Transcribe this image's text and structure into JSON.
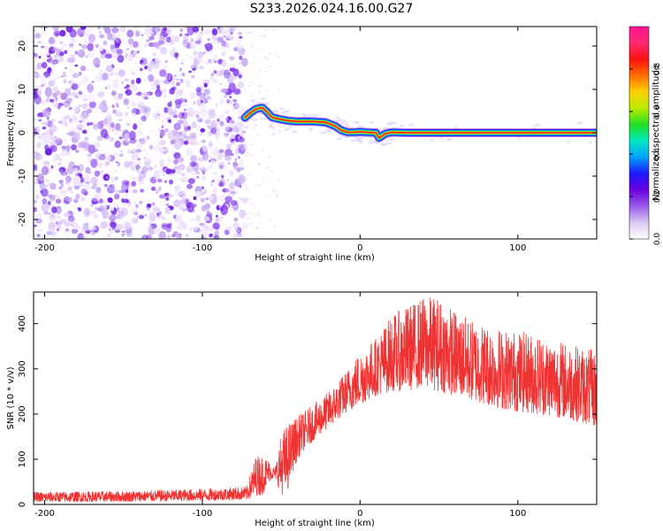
{
  "title": "S233.2026.024.16.00.G27",
  "chart_data": [
    {
      "type": "heatmap",
      "xlabel": "Height of straight line (km)",
      "ylabel": "Frequency (Hz)",
      "xlim": [
        -207,
        150
      ],
      "ylim": [
        -24.5,
        24.5
      ],
      "xticks": [
        -200,
        -100,
        0,
        100
      ],
      "yticks": [
        -20,
        -10,
        0,
        10,
        20
      ],
      "grid": false,
      "noise_region_x": [
        -207,
        -73
      ],
      "ridge": {
        "x": [
          -73,
          -70,
          -66,
          -62,
          -59,
          -56,
          -52,
          -46,
          -40,
          -30,
          -22,
          -16,
          -12,
          -8,
          -4,
          0,
          4,
          10,
          12,
          16,
          20,
          30,
          60,
          100,
          150
        ],
        "freq": [
          3.5,
          4.5,
          5.5,
          5.8,
          4.8,
          3.6,
          3.2,
          2.8,
          2.6,
          2.6,
          2.4,
          1.6,
          0.6,
          0.1,
          0.1,
          0.2,
          0.1,
          0.0,
          -1.2,
          -0.2,
          0.1,
          0.0,
          0.0,
          0.0,
          0.0
        ]
      },
      "colorbar": {
        "label": "Normalized spectral amplitude",
        "range": [
          0.0,
          1.0
        ],
        "ticks": [
          "0.0",
          "0.2",
          "0.4",
          "0.6",
          "0.8"
        ],
        "tick_values": [
          0.0,
          0.2,
          0.4,
          0.6,
          0.8
        ],
        "colors": [
          "#ffffff",
          "#dcc8f4",
          "#9a5be8",
          "#6a00e0",
          "#1f18ff",
          "#00a0ff",
          "#00e8c0",
          "#20e020",
          "#b8ea00",
          "#ffd000",
          "#ff7000",
          "#ff1010",
          "#ff2a70",
          "#ff1493"
        ]
      },
      "noise_color": "#7b2ff0"
    },
    {
      "type": "line",
      "xlabel": "Height of straight line (km)",
      "ylabel": "SNR (10 * v/v)",
      "xlim": [
        -207,
        150
      ],
      "ylim": [
        0,
        470
      ],
      "xticks": [
        -200,
        -100,
        0,
        100
      ],
      "yticks": [
        0,
        100,
        200,
        300,
        400
      ],
      "grid": false,
      "series": [
        {
          "color": "#ef3333",
          "envelope": {
            "x": [
              -207,
              -150,
              -100,
              -72,
              -66,
              -62,
              -58,
              -54,
              -50,
              -46,
              -42,
              -38,
              -30,
              -20,
              -10,
              0,
              10,
              20,
              30,
              40,
              50,
              60,
              70,
              80,
              90,
              100,
              110,
              120,
              130,
              140,
              150
            ],
            "low": [
              5,
              6,
              8,
              10,
              20,
              20,
              50,
              60,
              20,
              30,
              80,
              110,
              140,
              170,
              200,
              220,
              240,
              250,
              250,
              260,
              250,
              240,
              230,
              220,
              210,
              205,
              200,
              195,
              190,
              180,
              170
            ],
            "high": [
              28,
              30,
              35,
              40,
              110,
              110,
              100,
              80,
              160,
              180,
              190,
              200,
              220,
              250,
              290,
              340,
              370,
              420,
              440,
              460,
              460,
              430,
              410,
              400,
              390,
              385,
              380,
              370,
              360,
              350,
              340
            ]
          }
        }
      ]
    }
  ]
}
